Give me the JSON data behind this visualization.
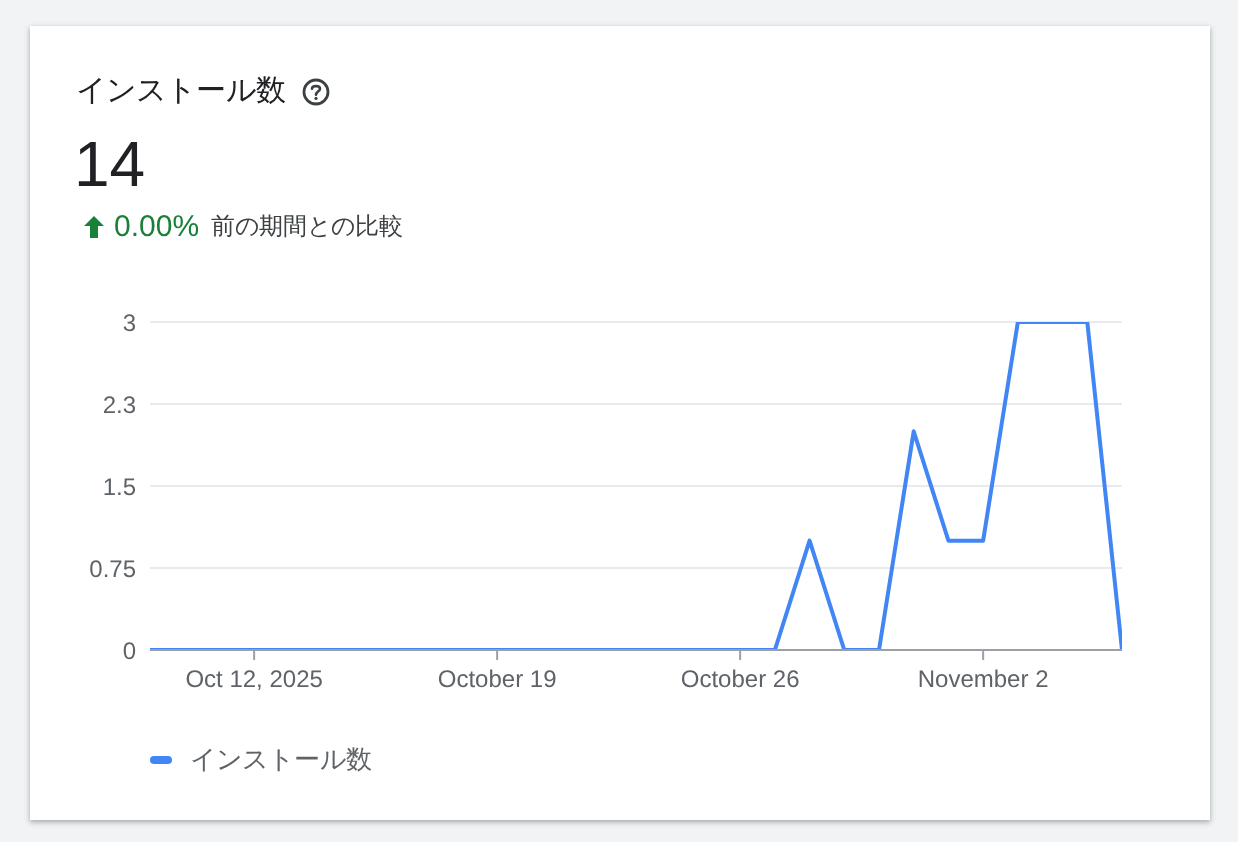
{
  "chart_data": {
    "type": "line",
    "title": "インストール数",
    "annotations": [
      "14",
      "0.00%",
      "前の期間との比較"
    ],
    "x": [
      "2025-10-09",
      "2025-10-10",
      "2025-10-11",
      "2025-10-12",
      "2025-10-13",
      "2025-10-14",
      "2025-10-15",
      "2025-10-16",
      "2025-10-17",
      "2025-10-18",
      "2025-10-19",
      "2025-10-20",
      "2025-10-21",
      "2025-10-22",
      "2025-10-23",
      "2025-10-24",
      "2025-10-25",
      "2025-10-26",
      "2025-10-27",
      "2025-10-28",
      "2025-10-29",
      "2025-10-30",
      "2025-10-31",
      "2025-11-01",
      "2025-11-02",
      "2025-11-03",
      "2025-11-04",
      "2025-11-05",
      "2025-11-06"
    ],
    "series": [
      {
        "name": "インストール数",
        "color": "#4285f4",
        "values": [
          0,
          0,
          0,
          0,
          0,
          0,
          0,
          0,
          0,
          0,
          0,
          0,
          0,
          0,
          0,
          0,
          0,
          0,
          0,
          1,
          0,
          0,
          2,
          1,
          1,
          3,
          3,
          3,
          0
        ]
      }
    ],
    "xlim": [
      "2025-10-09",
      "2025-11-06"
    ],
    "xticks": [
      {
        "value": "2025-10-12",
        "label": "Oct 12, 2025"
      },
      {
        "value": "2025-10-19",
        "label": "October 19"
      },
      {
        "value": "2025-10-26",
        "label": "October 26"
      },
      {
        "value": "2025-11-02",
        "label": "November 2"
      }
    ],
    "ylim": [
      0,
      3
    ],
    "yticks": [
      0,
      0.75,
      1.5,
      {
        "value": 2.25,
        "label": "2.3"
      },
      3
    ],
    "grid": "y",
    "legend": "bottom"
  }
}
